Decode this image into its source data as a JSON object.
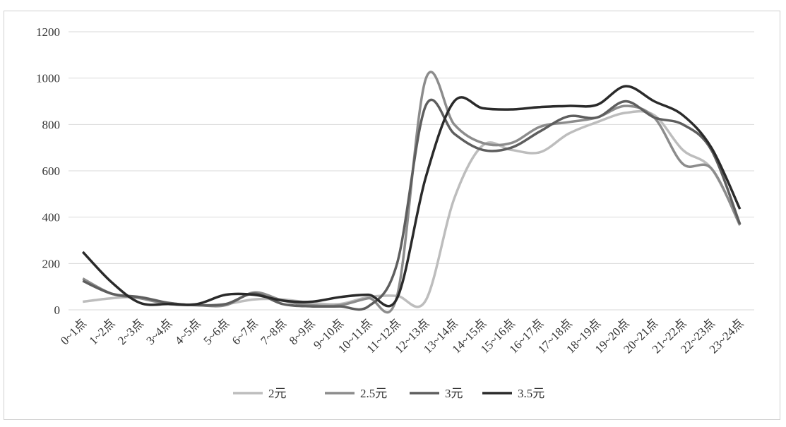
{
  "chart_data": {
    "type": "line",
    "categories": [
      "0~1点",
      "1~2点",
      "2~3点",
      "3~4点",
      "4~5点",
      "5~6点",
      "6~7点",
      "7~8点",
      "8~9点",
      "9~10点",
      "10~11点",
      "11~12点",
      "12~13点",
      "13~14点",
      "14~15点",
      "15~16点",
      "16~17点",
      "17~18点",
      "18~19点",
      "19~20点",
      "20~21点",
      "21~22点",
      "22~23点",
      "23~24点"
    ],
    "ylim": [
      0,
      1200
    ],
    "yticks": [
      0,
      200,
      400,
      600,
      800,
      1000,
      1200
    ],
    "grid": true,
    "legend": "bottom",
    "series": [
      {
        "name": "2元",
        "color": "#bdbdbd",
        "values": [
          35,
          50,
          55,
          30,
          20,
          25,
          45,
          45,
          30,
          25,
          55,
          60,
          40,
          480,
          710,
          690,
          680,
          760,
          810,
          850,
          840,
          690,
          610,
          370
        ]
      },
      {
        "name": "2.5元",
        "color": "#8c8c8c",
        "values": [
          135,
          70,
          50,
          25,
          20,
          20,
          75,
          40,
          20,
          20,
          50,
          60,
          995,
          800,
          720,
          720,
          790,
          810,
          830,
          880,
          830,
          630,
          610,
          365
        ]
      },
      {
        "name": "3元",
        "color": "#5e5e5e",
        "values": [
          125,
          70,
          55,
          30,
          20,
          25,
          70,
          25,
          15,
          15,
          15,
          200,
          880,
          760,
          690,
          700,
          770,
          835,
          830,
          900,
          830,
          800,
          690,
          370
        ]
      },
      {
        "name": "3.5元",
        "color": "#2a2a2a",
        "values": [
          250,
          120,
          30,
          25,
          25,
          65,
          65,
          40,
          35,
          55,
          65,
          50,
          570,
          900,
          870,
          865,
          875,
          880,
          885,
          965,
          900,
          840,
          700,
          435
        ]
      }
    ]
  }
}
